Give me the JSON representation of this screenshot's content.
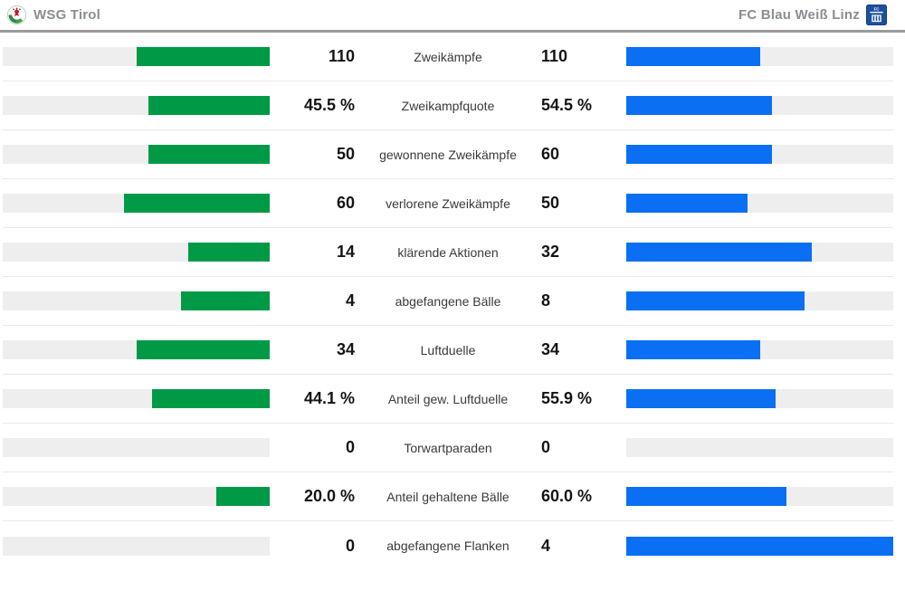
{
  "header": {
    "home": {
      "name": "WSG Tirol"
    },
    "away": {
      "name": "FC Blau Weiß Linz"
    }
  },
  "colors": {
    "home_bar": "#009a47",
    "away_bar": "#0a6ff2",
    "bar_track": "#eeeeee",
    "header_divider": "#9b9b9b",
    "row_border": "#e9e9e9",
    "team_name_text": "#8a8e91",
    "value_text": "#141414",
    "label_text": "#3a3a3a",
    "away_crest_blue": "#1c4f9e",
    "home_crest_green": "#2e8b3d",
    "home_crest_red": "#d0121b"
  },
  "chart_data": {
    "type": "bar",
    "orientation": "horizontal-paired",
    "title": "",
    "legend_position": "top",
    "grid": false,
    "teams": [
      "WSG Tirol",
      "FC Blau Weiß Linz"
    ],
    "categories": [
      "Zweikämpfe",
      "Zweikampfquote",
      "gewonnene Zweikämpfe",
      "verlorene Zweikämpfe",
      "klärende Aktionen",
      "abgefangene Bälle",
      "Luftduelle",
      "Anteil gew. Luftduelle",
      "Torwartparaden",
      "Anteil gehaltene Bälle",
      "abgefangene Flanken"
    ],
    "series": [
      {
        "name": "WSG Tirol",
        "color": "#009a47",
        "values": [
          "110",
          "45.5 %",
          "50",
          "60",
          "14",
          "4",
          "34",
          "44.1 %",
          "0",
          "20.0 %",
          "0"
        ]
      },
      {
        "name": "FC Blau Weiß Linz",
        "color": "#0a6ff2",
        "values": [
          "110",
          "54.5 %",
          "60",
          "50",
          "32",
          "8",
          "34",
          "55.9 %",
          "0",
          "60.0 %",
          "4"
        ]
      }
    ],
    "rows": [
      {
        "label": "Zweikämpfe",
        "home": "110",
        "away": "110",
        "home_fill": 0.5,
        "away_fill": 0.5
      },
      {
        "label": "Zweikampfquote",
        "home": "45.5 %",
        "away": "54.5 %",
        "home_fill": 0.455,
        "away_fill": 0.545
      },
      {
        "label": "gewonnene Zweikämpfe",
        "home": "50",
        "away": "60",
        "home_fill": 0.455,
        "away_fill": 0.545
      },
      {
        "label": "verlorene Zweikämpfe",
        "home": "60",
        "away": "50",
        "home_fill": 0.545,
        "away_fill": 0.455
      },
      {
        "label": "klärende Aktionen",
        "home": "14",
        "away": "32",
        "home_fill": 0.304,
        "away_fill": 0.696
      },
      {
        "label": "abgefangene Bälle",
        "home": "4",
        "away": "8",
        "home_fill": 0.333,
        "away_fill": 0.667
      },
      {
        "label": "Luftduelle",
        "home": "34",
        "away": "34",
        "home_fill": 0.5,
        "away_fill": 0.5
      },
      {
        "label": "Anteil gew. Luftduelle",
        "home": "44.1 %",
        "away": "55.9 %",
        "home_fill": 0.441,
        "away_fill": 0.559
      },
      {
        "label": "Torwartparaden",
        "home": "0",
        "away": "0",
        "home_fill": 0.0,
        "away_fill": 0.0
      },
      {
        "label": "Anteil gehaltene Bälle",
        "home": "20.0 %",
        "away": "60.0 %",
        "home_fill": 0.2,
        "away_fill": 0.6
      },
      {
        "label": "abgefangene Flanken",
        "home": "0",
        "away": "4",
        "home_fill": 0.0,
        "away_fill": 1.0
      }
    ]
  }
}
